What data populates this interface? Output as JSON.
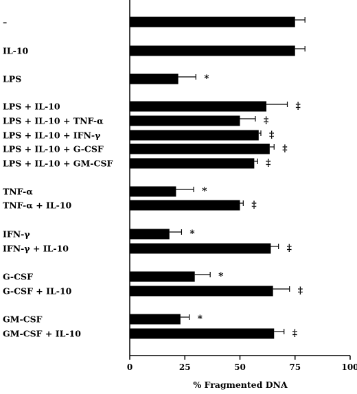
{
  "chart_data": {
    "type": "bar",
    "orientation": "horizontal",
    "xlabel": "% Fragmented DNA",
    "ylabel": "",
    "title": "",
    "xlim": [
      0,
      100
    ],
    "xticks": [
      0,
      25,
      50,
      75,
      100
    ],
    "legend": "none",
    "bar_color": "#000000",
    "bars": [
      {
        "label": "–",
        "value": 75,
        "error": 4.5,
        "marker": ""
      },
      {
        "label": "IL-10",
        "value": 75,
        "error": 4.5,
        "marker": ""
      },
      {
        "label": "LPS",
        "value": 22,
        "error": 8,
        "marker": "*"
      },
      {
        "label": "LPS + IL-10",
        "value": 62,
        "error": 9.5,
        "marker": "‡"
      },
      {
        "label": "LPS + IL-10 + TNF-α",
        "value": 50,
        "error": 7,
        "marker": "‡"
      },
      {
        "label": "LPS + IL-10 + IFN-γ",
        "value": 58.5,
        "error": 1,
        "marker": "‡"
      },
      {
        "label": "LPS + IL-10 + G-CSF",
        "value": 63.5,
        "error": 2,
        "marker": "‡"
      },
      {
        "label": "LPS + IL-10 + GM-CSF",
        "value": 56.5,
        "error": 1.5,
        "marker": "‡"
      },
      {
        "label": "TNF-α",
        "value": 21,
        "error": 8,
        "marker": "*"
      },
      {
        "label": "TNF-α + IL-10",
        "value": 50,
        "error": 1.5,
        "marker": "‡"
      },
      {
        "label": "IFN-γ",
        "value": 18,
        "error": 5.5,
        "marker": "*"
      },
      {
        "label": "IFN-γ + IL-10",
        "value": 64,
        "error": 3.5,
        "marker": "‡"
      },
      {
        "label": "G-CSF",
        "value": 29.5,
        "error": 7,
        "marker": "*"
      },
      {
        "label": "G-CSF + IL-10",
        "value": 65,
        "error": 7.5,
        "marker": "‡"
      },
      {
        "label": "GM-CSF",
        "value": 23,
        "error": 4,
        "marker": "*"
      },
      {
        "label": "GM-CSF + IL-10",
        "value": 65.5,
        "error": 4.5,
        "marker": "‡"
      }
    ]
  }
}
